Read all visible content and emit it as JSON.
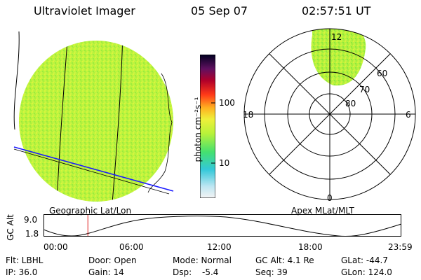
{
  "header": {
    "instrument": "Ultraviolet Imager",
    "date": "05 Sep 07",
    "time": "02:57:51 UT"
  },
  "colorbar": {
    "label": "photon cm⁻²s⁻¹",
    "ticks": [
      "100",
      "10"
    ]
  },
  "geo_panel": {
    "label": "Geographic Lat/Lon"
  },
  "polar_panel": {
    "label": "Apex MLat/MLT",
    "mlt_labels": {
      "top": "12",
      "left": "18",
      "right": "6",
      "bottom": "0"
    },
    "lat_labels": [
      "60",
      "70",
      "80"
    ]
  },
  "altitude_plot": {
    "ylabel": "GC Alt",
    "yticks": [
      "9.0",
      "1.8"
    ],
    "xticks": [
      "00:00",
      "06:00",
      "12:00",
      "18:00",
      "23:59"
    ],
    "current_time_fraction": 0.124
  },
  "info": {
    "filter": "Flt: LBHL",
    "ip": "IP: 36.0",
    "door": "Door: Open",
    "gain": "Gain: 14",
    "mode": "Mode: Normal",
    "dsp_label": "Dsp:",
    "dsp_value": "-5.4",
    "gc_alt": "GC Alt: 4.1 Re",
    "seq": "Seq: 39",
    "glat": "GLat: -44.7",
    "glon": "GLon: 124.0"
  }
}
